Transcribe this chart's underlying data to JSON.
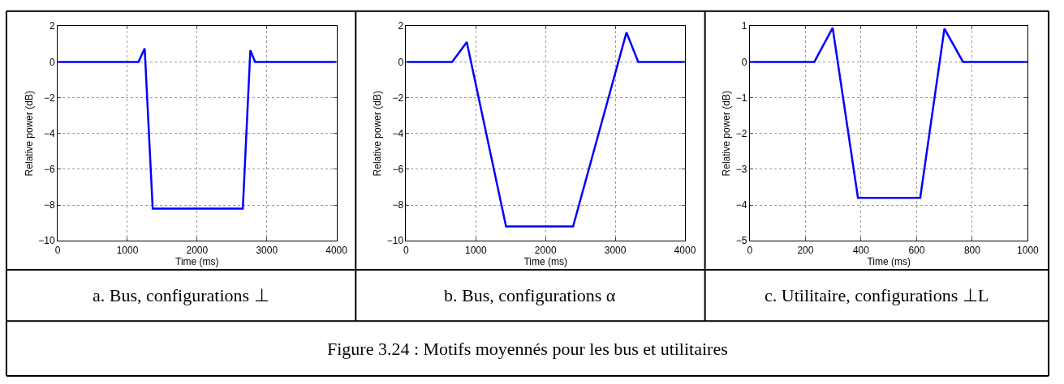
{
  "chart_data": [
    {
      "type": "line",
      "title": "a. Bus, configurations ⊥",
      "xlabel": "Time (ms)",
      "ylabel": "Relative power (dB)",
      "x": [
        0,
        1159,
        1248,
        1363,
        2656,
        2764,
        2833,
        4000
      ],
      "series": [
        {
          "color": "#0000ff",
          "values": [
            0,
            0,
            0.75,
            -8.2,
            -8.2,
            0.65,
            0,
            0
          ]
        }
      ],
      "xlim": [
        0,
        4000
      ],
      "xticks": [
        0,
        1000,
        2000,
        3000,
        4000
      ],
      "ylim": [
        -10,
        2
      ],
      "yticks": [
        -10,
        -8,
        -6,
        -4,
        -2,
        0,
        2
      ],
      "grid": true,
      "line_style": "solid",
      "annotations": [
        "Figure 3.24 : Motifs moyennés pour les bus et utilitaires"
      ]
    },
    {
      "type": "line",
      "title": "b. Bus, configurations α",
      "xlabel": "Time (ms)",
      "ylabel": "Relative power (dB)",
      "x": [
        0,
        659,
        870,
        1433,
        2395,
        3161,
        3330,
        4000
      ],
      "series": [
        {
          "color": "#0000ff",
          "values": [
            0,
            0,
            1.1,
            -9.2,
            -9.2,
            1.65,
            0,
            0
          ]
        }
      ],
      "xlim": [
        0,
        4000
      ],
      "xticks": [
        0,
        1000,
        2000,
        3000,
        4000
      ],
      "ylim": [
        -10,
        2
      ],
      "yticks": [
        -10,
        -8,
        -6,
        -4,
        -2,
        0,
        2
      ],
      "grid": true,
      "line_style": "solid"
    },
    {
      "type": "line",
      "title": "c. Utilitaire, configurations ⊥L",
      "xlabel": "Time (ms)",
      "ylabel": "Relative power (dB)",
      "x": [
        0,
        232,
        298,
        389,
        613,
        700,
        767,
        1000
      ],
      "series": [
        {
          "color": "#0000ff",
          "values": [
            0,
            0,
            0.95,
            -3.8,
            -3.8,
            0.93,
            0,
            0
          ]
        }
      ],
      "xlim": [
        0,
        1000
      ],
      "xticks": [
        0,
        200,
        400,
        600,
        800,
        1000
      ],
      "ylim": [
        -5,
        1
      ],
      "yticks": [
        -5,
        -4,
        -3,
        -2,
        -1,
        0,
        1
      ],
      "grid": true,
      "line_style": "solid"
    }
  ]
}
